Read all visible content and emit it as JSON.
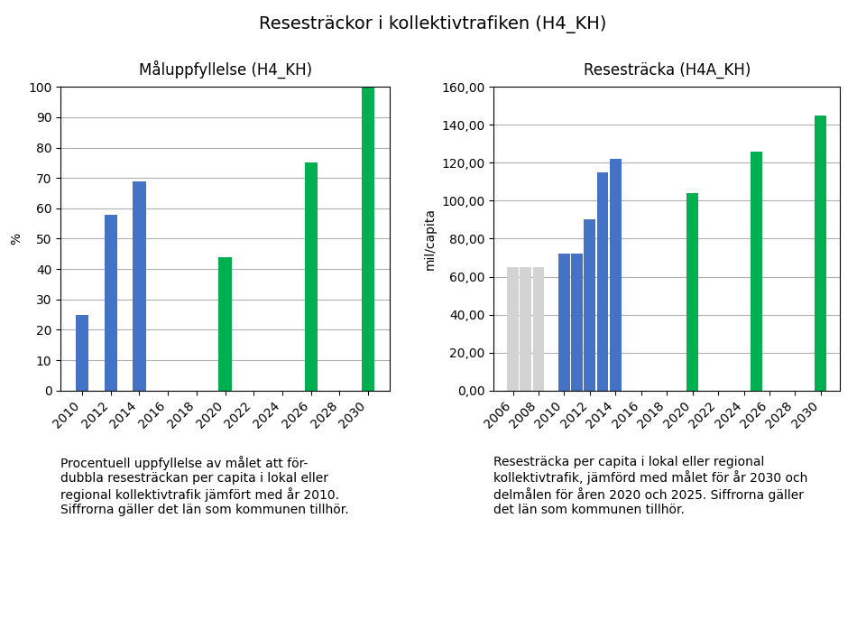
{
  "title": "Resesträckor i kollektivtrafiken (H4_KH)",
  "chart_data": [
    {
      "type": "bar",
      "title": "Måluppfyllelse (H4_KH)",
      "y_label": "%",
      "x": [
        2010,
        2012,
        2014,
        2020,
        2026,
        2030
      ],
      "values": [
        25,
        58,
        69,
        44,
        75,
        100
      ],
      "colors": [
        "#4472C4",
        "#4472C4",
        "#4472C4",
        "#00B050",
        "#00B050",
        "#00B050"
      ],
      "xlim": [
        2008.5,
        2031.5
      ],
      "xticks": [
        2010,
        2012,
        2014,
        2016,
        2018,
        2020,
        2022,
        2024,
        2026,
        2028,
        2030
      ],
      "ylim": [
        0,
        100
      ],
      "yticks": [
        0,
        10,
        20,
        30,
        40,
        50,
        60,
        70,
        80,
        90,
        100
      ],
      "grid": true,
      "annotation": "Procentuell uppfyllelse av målet att för-\ndubbla resesträckan per capita i lokal eller\nregional kollektivtrafik jämfört med år 2010.\nSiffrorna gäller det län som kommunen tillhör."
    },
    {
      "type": "bar",
      "title": "Resesträcka (H4A_KH)",
      "y_label": "mil/capita",
      "x": [
        2006,
        2007,
        2008,
        2010,
        2011,
        2012,
        2013,
        2014,
        2020,
        2025,
        2030
      ],
      "values": [
        65,
        65,
        65,
        72,
        72,
        90,
        115,
        122,
        104,
        126,
        145
      ],
      "colors": [
        "#D3D3D3",
        "#D3D3D3",
        "#D3D3D3",
        "#4472C4",
        "#4472C4",
        "#4472C4",
        "#4472C4",
        "#4472C4",
        "#00B050",
        "#00B050",
        "#00B050"
      ],
      "xlim": [
        2004.5,
        2031.5
      ],
      "xticks": [
        2006,
        2008,
        2010,
        2012,
        2014,
        2016,
        2018,
        2020,
        2022,
        2024,
        2026,
        2028,
        2030
      ],
      "ylim": [
        0,
        160
      ],
      "yticks": [
        {
          "value": 0,
          "label": "0,00"
        },
        {
          "value": 20,
          "label": "20,00"
        },
        {
          "value": 40,
          "label": "40,00"
        },
        {
          "value": 60,
          "label": "60,00"
        },
        {
          "value": 80,
          "label": "80,00"
        },
        {
          "value": 100,
          "label": "100,00"
        },
        {
          "value": 120,
          "label": "120,00"
        },
        {
          "value": 140,
          "label": "140,00"
        },
        {
          "value": 160,
          "label": "160,00"
        }
      ],
      "grid": true,
      "annotation": "Resesträcka per capita i lokal eller regional\nkollektivtrafik, jämförd med målet för år 2030 och\ndelmålen för åren 2020 och 2025. Siffrorna gäller\ndet län som kommunen tillhör."
    }
  ]
}
